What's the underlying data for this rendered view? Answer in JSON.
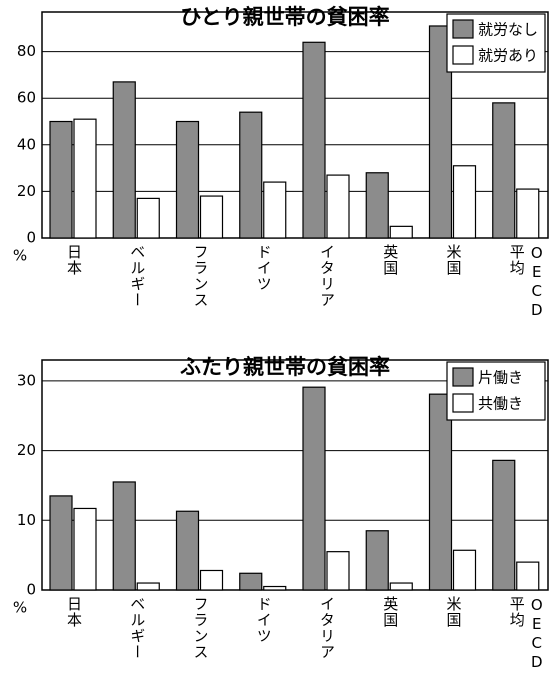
{
  "chart_data": [
    {
      "type": "bar",
      "title": "ひとり親世帯の貧困率",
      "y_unit": "%",
      "categories": [
        "日本",
        "ベルギー",
        "フランス",
        "ドイツ",
        "イタリア",
        "英国",
        "米国",
        "平均 OECD"
      ],
      "series": [
        {
          "name": "就労なし",
          "color": "#8c8c8c",
          "values": [
            50,
            67,
            50,
            54,
            84,
            28,
            91,
            58
          ]
        },
        {
          "name": "就労あり",
          "color": "#ffffff",
          "values": [
            51,
            17,
            18,
            24,
            27,
            5,
            31,
            21
          ]
        }
      ],
      "ylim": [
        0,
        97
      ],
      "yticks": [
        0,
        20,
        40,
        60,
        80
      ],
      "grid": true,
      "legend": "upper right"
    },
    {
      "type": "bar",
      "title": "ふたり親世帯の貧困率",
      "y_unit": "%",
      "categories": [
        "日本",
        "ベルギー",
        "フランス",
        "ドイツ",
        "イタリア",
        "英国",
        "米国",
        "平均 OECD"
      ],
      "series": [
        {
          "name": "片働き",
          "color": "#8c8c8c",
          "values": [
            13.5,
            15.5,
            11.3,
            2.4,
            29.1,
            8.5,
            28.1,
            18.6
          ]
        },
        {
          "name": "共働き",
          "color": "#ffffff",
          "values": [
            11.7,
            1,
            2.8,
            0.5,
            5.5,
            1,
            5.7,
            4
          ]
        }
      ],
      "ylim": [
        0,
        33
      ],
      "yticks": [
        0,
        10,
        20,
        30
      ],
      "grid": true,
      "legend": "upper right"
    }
  ]
}
